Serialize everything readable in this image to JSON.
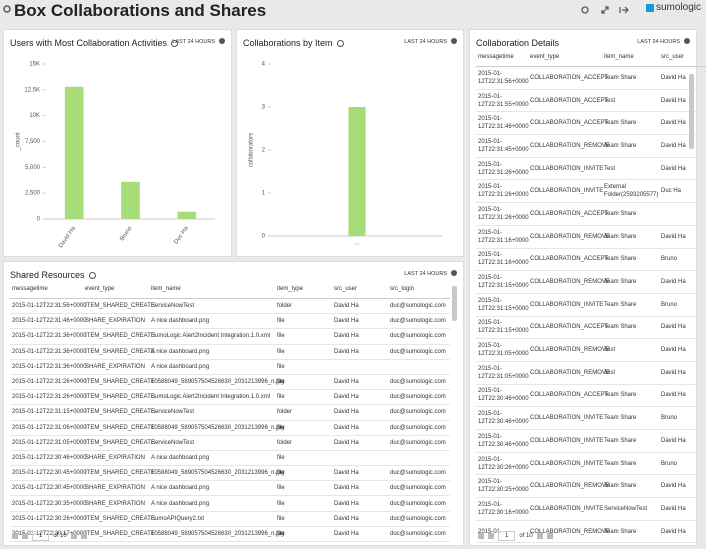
{
  "header": {
    "title": "Box Collaborations and Shares",
    "logo": "sumologic"
  },
  "chart_data": [
    {
      "type": "bar",
      "title": "Users with Most Collaboration Activities",
      "subtitle": "LAST 24 HOURS",
      "y_label": "_count",
      "categories": [
        "David Ha",
        "Bruno",
        "Duc Ha"
      ],
      "values": [
        12800,
        3600,
        700
      ],
      "color": "#a8dc78",
      "ylim": [
        0,
        15000
      ],
      "yticks": [
        0,
        {
          "value": 2500,
          "label": "2,500"
        },
        {
          "value": 5000,
          "label": "5,000"
        },
        {
          "value": 7500,
          "label": "7,500"
        },
        {
          "value": 10000,
          "label": "10K"
        },
        {
          "value": 12500,
          "label": "12.5K"
        },
        {
          "value": 15000,
          "label": "15K"
        }
      ],
      "grid": false
    },
    {
      "type": "bar",
      "title": "Collaborations by Item",
      "subtitle": "LAST 24 HOURS",
      "y_label": "collaborators",
      "categories": [
        "..."
      ],
      "values": [
        3
      ],
      "color": "#a8dc78",
      "ylim": [
        0,
        4
      ],
      "yticks": [
        0,
        1,
        2,
        3,
        4
      ],
      "grid": false
    }
  ],
  "collaboration_details": {
    "title": "Collaboration Details",
    "subtitle": "LAST 24 HOURS",
    "columns": [
      "messagetime",
      "event_type",
      "item_name",
      "src_user"
    ],
    "rows": [
      [
        "2015-01-12T22:31:56+0000",
        "COLLABORATION_ACCEPT",
        "Team Share",
        "David Ha"
      ],
      [
        "2015-01-12T22:31:55+0000",
        "COLLABORATION_ACCEPT",
        "Test",
        "David Ha"
      ],
      [
        "2015-01-12T22:31:46+0000",
        "COLLABORATION_ACCEPT",
        "Team Share",
        "David Ha"
      ],
      [
        "2015-01-12T22:31:45+0000",
        "COLLABORATION_REMOVE",
        "Team Share",
        "David Ha"
      ],
      [
        "2015-01-12T22:31:26+0000",
        "COLLABORATION_INVITE",
        "Test",
        "David Ha"
      ],
      [
        "2015-01-12T22:31:26+0000",
        "COLLABORATION_INVITE",
        "External Folder(2593205577)",
        "Duc Ha"
      ],
      [
        "2015-01-12T22:31:26+0000",
        "COLLABORATION_ACCEPT",
        "Team Share",
        null
      ],
      [
        "2015-01-12T22:31:16+0000",
        "COLLABORATION_REMOVE",
        "Team Share",
        "David Ha"
      ],
      [
        "2015-01-12T22:31:16+0000",
        "COLLABORATION_ACCEPT",
        "Team Share",
        "Bruno"
      ],
      [
        "2015-01-12T22:31:15+0000",
        "COLLABORATION_REMOVE",
        "Team Share",
        "David Ha"
      ],
      [
        "2015-01-12T22:31:15+0000",
        "COLLABORATION_INVITE",
        "Team Share",
        "Bruno"
      ],
      [
        "2015-01-12T22:31:15+0000",
        "COLLABORATION_ACCEPT",
        "Team Share",
        "David Ha"
      ],
      [
        "2015-01-12T22:31:05+0000",
        "COLLABORATION_REMOVE",
        "Test",
        "David Ha"
      ],
      [
        "2015-01-12T22:31:05+0000",
        "COLLABORATION_REMOVE",
        "Test",
        "David Ha"
      ],
      [
        "2015-01-12T22:30:46+0000",
        "COLLABORATION_ACCEPT",
        "Team Share",
        "David Ha"
      ],
      [
        "2015-01-12T22:30:46+0000",
        "COLLABORATION_INVITE",
        "Team Share",
        "Bruno"
      ],
      [
        "2015-01-12T22:30:46+0000",
        "COLLABORATION_INVITE",
        "Team Share",
        "David Ha"
      ],
      [
        "2015-01-12T22:30:26+0000",
        "COLLABORATION_INVITE",
        "Team Share",
        "Bruno"
      ],
      [
        "2015-01-12T22:30:25+0000",
        "COLLABORATION_REMOVE",
        "Team Share",
        "David Ha"
      ],
      [
        "2015-01-12T22:30:16+0000",
        "COLLABORATION_INVITE",
        "ServiceNowTest",
        "David Ha"
      ],
      [
        "2015-01-",
        "COLLABORATION_REMOVE",
        "Team Share",
        "David Ha"
      ]
    ],
    "page": 1,
    "page_total": "of 10"
  },
  "shared_resources": {
    "title": "Shared Resources",
    "subtitle": "LAST 24 HOURS",
    "columns": [
      "messagetime",
      "event_type",
      "item_name",
      "item_type",
      "src_user",
      "src_login"
    ],
    "rows": [
      [
        "2015-01-12T22:31:56+0000",
        "ITEM_SHARED_CREATE",
        "ServiceNowTest",
        "folder",
        "David Ha",
        "duc@sumologic.com"
      ],
      [
        "2015-01-12T22:31:46+0000",
        "SHARE_EXPIRATION",
        "A nice dashboard.png",
        "file",
        "David Ha",
        "duc@sumologic.com"
      ],
      [
        "2015-01-12T22:31:36+0000",
        "ITEM_SHARED_CREATE",
        "SumoLogic Alert2Incident Integration.1.0.xml",
        "file",
        "David Ha",
        "duc@sumologic.com"
      ],
      [
        "2015-01-12T22:31:36+0000",
        "ITEM_SHARED_CREATE",
        "A nice dashboard.png",
        "file",
        "David Ha",
        "duc@sumologic.com"
      ],
      [
        "2015-01-12T22:31:36+0000",
        "SHARE_EXPIRATION",
        "A nice dashboard.png",
        "file",
        null,
        null
      ],
      [
        "2015-01-12T22:31:26+0000",
        "ITEM_SHARED_CREATE",
        "10588049_589057504526630_2031213996_n.jpg",
        "file",
        "David Ha",
        "duc@sumologic.com"
      ],
      [
        "2015-01-12T22:31:26+0000",
        "ITEM_SHARED_CREATE",
        "SumoLogic Alert2Incident Integration.1.0.xml",
        "file",
        "David Ha",
        "duc@sumologic.com"
      ],
      [
        "2015-01-12T22:31:15+0000",
        "ITEM_SHARED_CREATE",
        "ServiceNowTest",
        "folder",
        "David Ha",
        "duc@sumologic.com"
      ],
      [
        "2015-01-12T22:31:06+0000",
        "ITEM_SHARED_CREATE",
        "10588049_589057504526630_2031213996_n.jpg",
        "file",
        "David Ha",
        "duc@sumologic.com"
      ],
      [
        "2015-01-12T22:31:05+0000",
        "ITEM_SHARED_CREATE",
        "ServiceNowTest",
        "folder",
        "David Ha",
        "duc@sumologic.com"
      ],
      [
        "2015-01-12T22:30:46+0000",
        "SHARE_EXPIRATION",
        "A nice dashboard.png",
        "file",
        null,
        null
      ],
      [
        "2015-01-12T22:30:45+0000",
        "ITEM_SHARED_CREATE",
        "10588049_589057504526630_2031213996_n.jpg",
        "file",
        "David Ha",
        "duc@sumologic.com"
      ],
      [
        "2015-01-12T22:30:45+0000",
        "SHARE_EXPIRATION",
        "A nice dashboard.png",
        "file",
        "David Ha",
        "duc@sumologic.com"
      ],
      [
        "2015-01-12T22:30:35+0000",
        "SHARE_EXPIRATION",
        "A nice dashboard.png",
        "file",
        "David Ha",
        "duc@sumologic.com"
      ],
      [
        "2015-01-12T22:30:26+0000",
        "ITEM_SHARED_CREATE",
        "SumoAPIQuery2.txt",
        "file",
        "David Ha",
        "duc@sumologic.com"
      ],
      [
        "2015-01-12T22:30:17+0000",
        "ITEM_SHARED_CREATE",
        "10588049_589057504526630_2031213996_n.jpg",
        "file",
        "David Ha",
        "duc@sumologic.com"
      ]
    ],
    "page": 1,
    "page_total": "of 10"
  }
}
